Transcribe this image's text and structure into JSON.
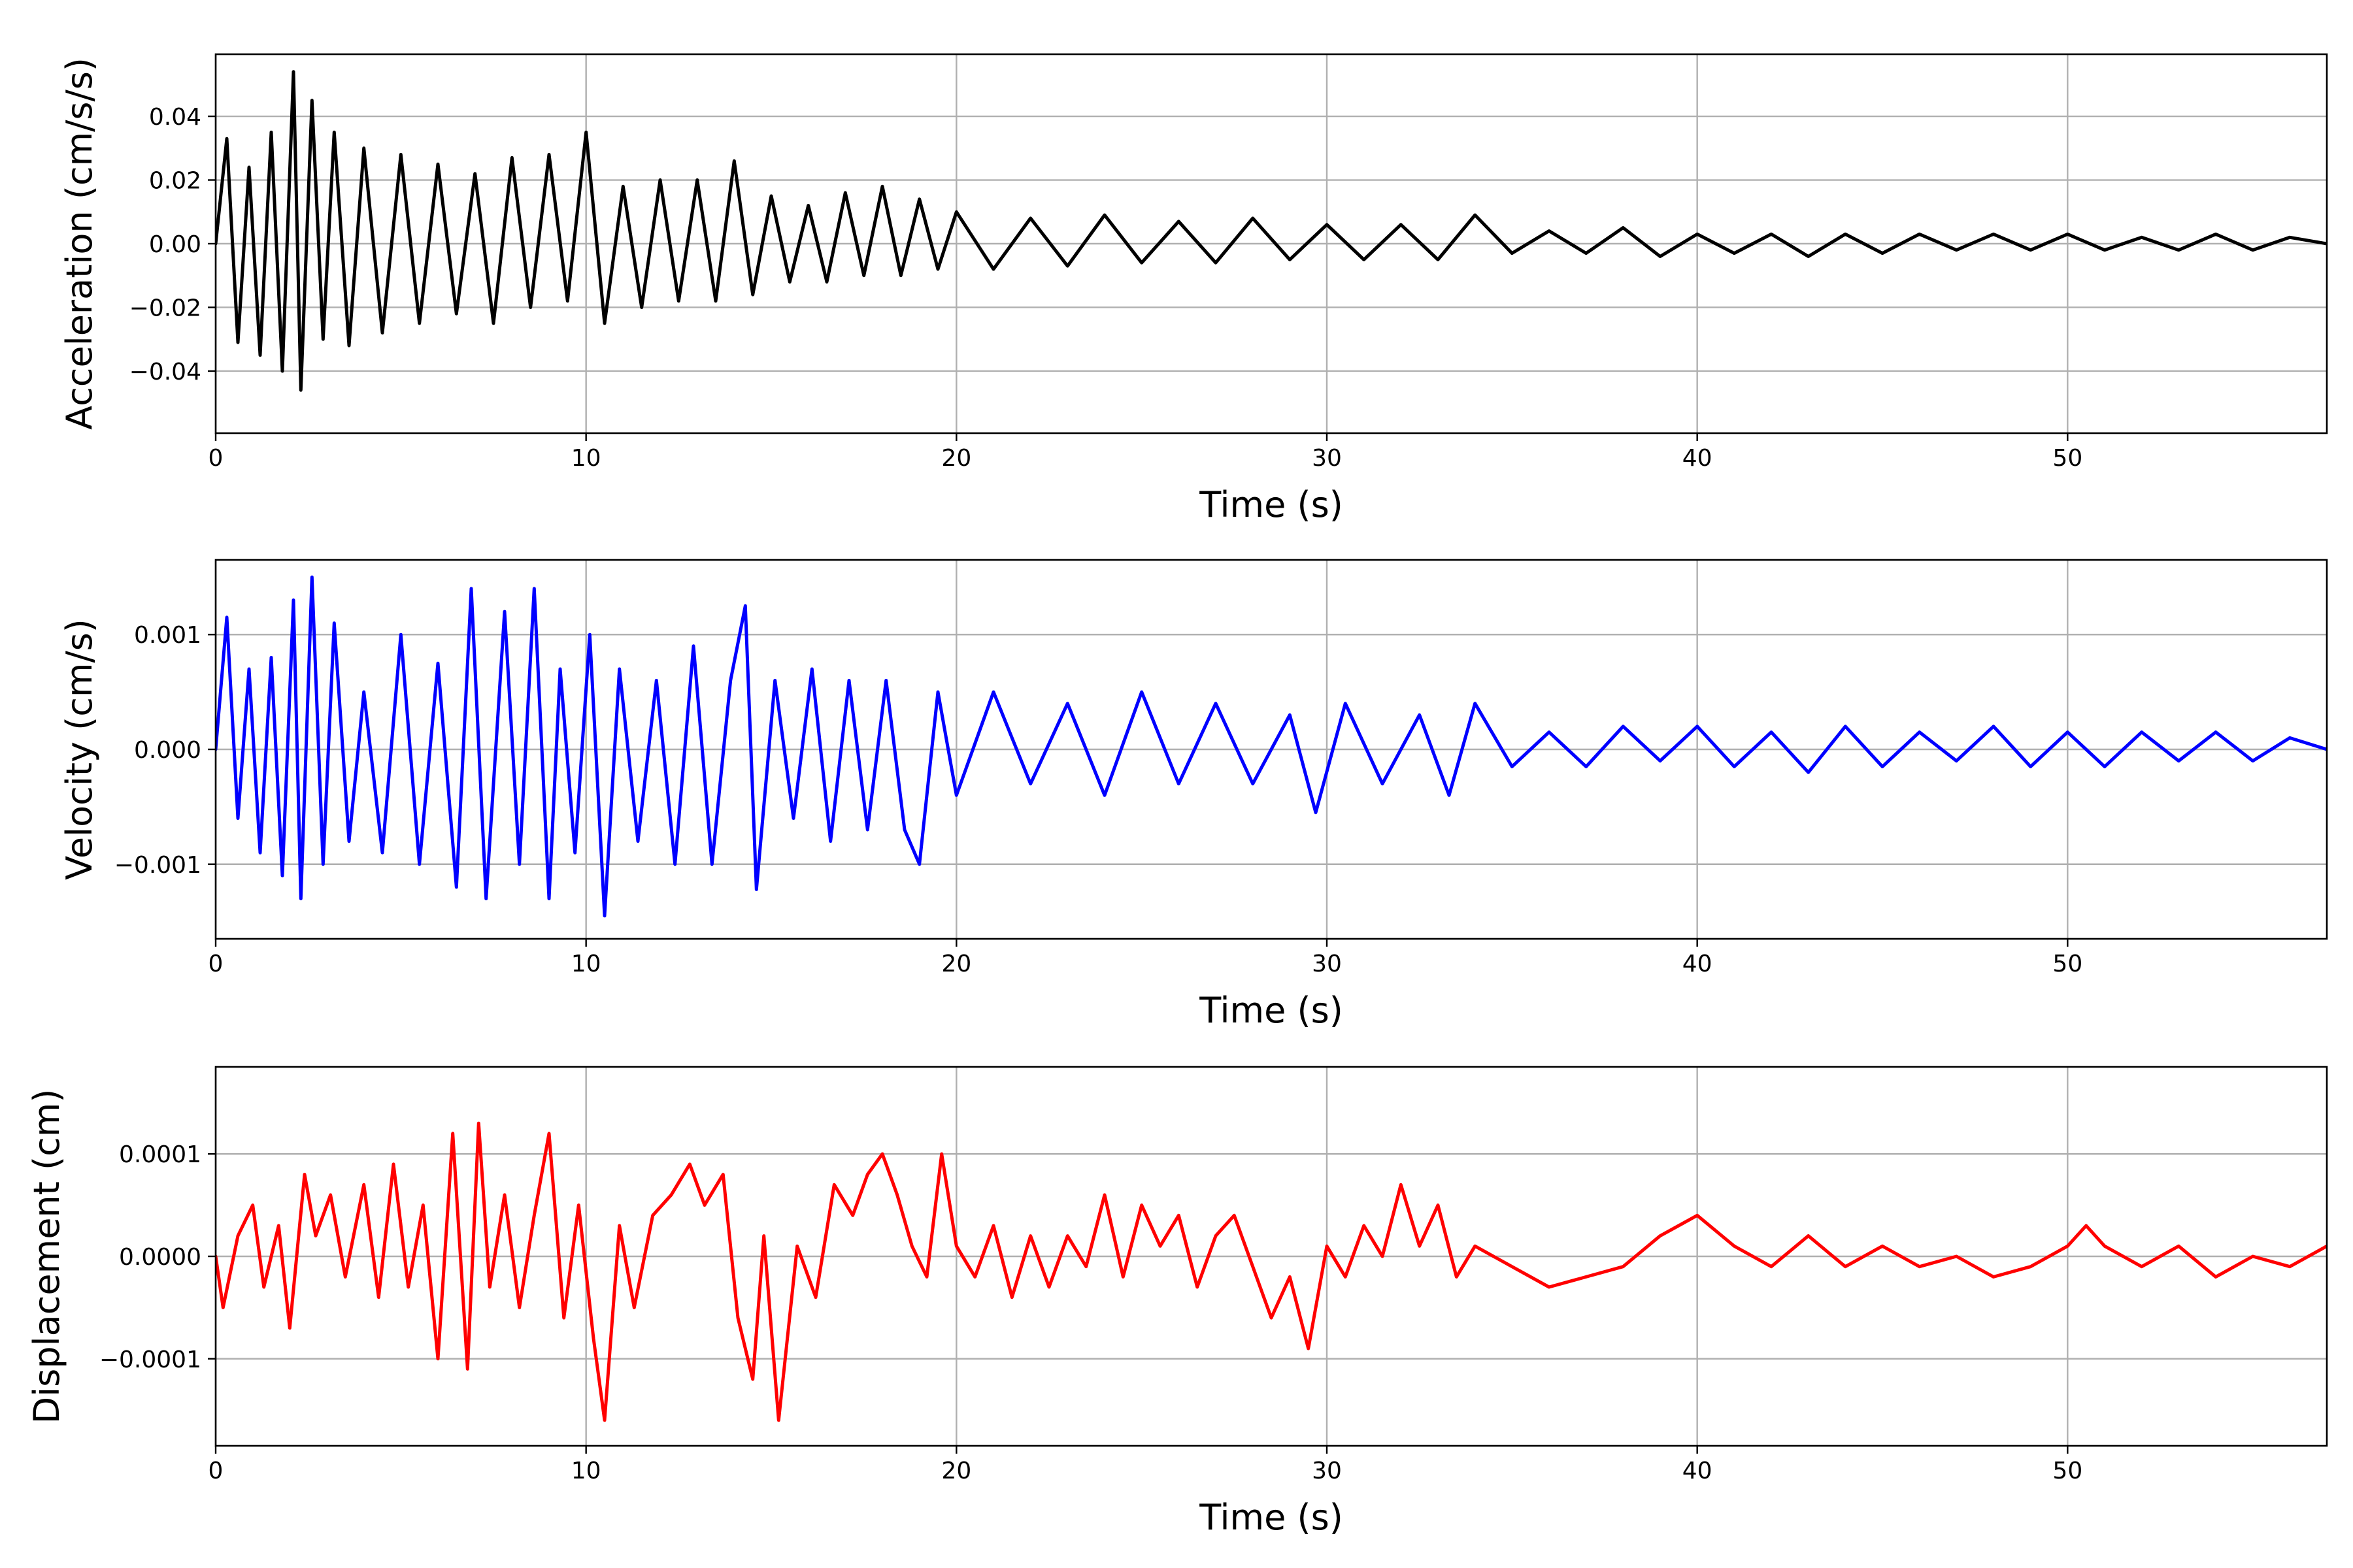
{
  "chart_data": [
    {
      "type": "line",
      "ylabel": "Acceleration (cm/s/s)",
      "xlabel": "Time (s)",
      "xlim": [
        0,
        57
      ],
      "ylim": [
        -0.0595,
        0.0595
      ],
      "grid": true,
      "x_ticks": [
        0,
        10,
        20,
        30,
        40,
        50
      ],
      "x_tick_labels": [
        "0",
        "10",
        "20",
        "30",
        "40",
        "50"
      ],
      "y_ticks": [
        -0.04,
        -0.02,
        0.0,
        0.02,
        0.04
      ],
      "y_tick_labels": [
        "−0.04",
        "−0.02",
        "0.00",
        "0.02",
        "0.04"
      ],
      "series": [
        {
          "color": "#000000",
          "x": [
            0,
            0.3,
            0.6,
            0.9,
            1.2,
            1.5,
            1.8,
            2.1,
            2.3,
            2.6,
            2.9,
            3.2,
            3.6,
            4.0,
            4.5,
            5.0,
            5.5,
            6.0,
            6.5,
            7.0,
            7.5,
            8.0,
            8.5,
            9.0,
            9.5,
            10.0,
            10.5,
            11.0,
            11.5,
            12.0,
            12.5,
            13.0,
            13.5,
            14.0,
            14.5,
            15.0,
            15.5,
            16.0,
            16.5,
            17.0,
            17.5,
            18.0,
            18.5,
            19.0,
            19.5,
            20.0,
            21.0,
            22.0,
            23.0,
            24.0,
            25.0,
            26.0,
            27.0,
            28.0,
            29.0,
            30.0,
            31.0,
            32.0,
            33.0,
            34.0,
            35.0,
            36.0,
            37.0,
            38.0,
            39.0,
            40.0,
            41.0,
            42.0,
            43.0,
            44.0,
            45.0,
            46.0,
            47.0,
            48.0,
            49.0,
            50.0,
            51.0,
            52.0,
            53.0,
            54.0,
            55.0,
            56.0,
            57.0
          ],
          "y": [
            0.0,
            0.033,
            -0.031,
            0.024,
            -0.035,
            0.035,
            -0.04,
            0.054,
            -0.046,
            0.045,
            -0.03,
            0.035,
            -0.032,
            0.03,
            -0.028,
            0.028,
            -0.025,
            0.025,
            -0.022,
            0.022,
            -0.025,
            0.027,
            -0.02,
            0.028,
            -0.018,
            0.035,
            -0.025,
            0.018,
            -0.02,
            0.02,
            -0.018,
            0.02,
            -0.018,
            0.026,
            -0.016,
            0.015,
            -0.012,
            0.012,
            -0.012,
            0.016,
            -0.01,
            0.018,
            -0.01,
            0.014,
            -0.008,
            0.01,
            -0.008,
            0.008,
            -0.007,
            0.009,
            -0.006,
            0.007,
            -0.006,
            0.008,
            -0.005,
            0.006,
            -0.005,
            0.006,
            -0.005,
            0.009,
            -0.003,
            0.004,
            -0.003,
            0.005,
            -0.004,
            0.003,
            -0.003,
            0.003,
            -0.004,
            0.003,
            -0.003,
            0.003,
            -0.002,
            0.003,
            -0.002,
            0.003,
            -0.002,
            0.002,
            -0.002,
            0.003,
            -0.002,
            0.002,
            0.0
          ]
        }
      ]
    },
    {
      "type": "line",
      "ylabel": "Velocity (cm/s)",
      "xlabel": "Time (s)",
      "xlim": [
        0,
        57
      ],
      "ylim": [
        -0.00165,
        0.00165
      ],
      "grid": true,
      "x_ticks": [
        0,
        10,
        20,
        30,
        40,
        50
      ],
      "x_tick_labels": [
        "0",
        "10",
        "20",
        "30",
        "40",
        "50"
      ],
      "y_ticks": [
        -0.001,
        0.0,
        0.001
      ],
      "y_tick_labels": [
        "−0.001",
        "0.000",
        "0.001"
      ],
      "series": [
        {
          "color": "#0000ff",
          "x": [
            0,
            0.3,
            0.6,
            0.9,
            1.2,
            1.5,
            1.8,
            2.1,
            2.3,
            2.6,
            2.9,
            3.2,
            3.6,
            4.0,
            4.5,
            5.0,
            5.5,
            6.0,
            6.5,
            6.9,
            7.3,
            7.8,
            8.2,
            8.6,
            9.0,
            9.3,
            9.7,
            10.1,
            10.5,
            10.9,
            11.4,
            11.9,
            12.4,
            12.9,
            13.4,
            13.9,
            14.3,
            14.6,
            15.1,
            15.6,
            16.1,
            16.6,
            17.1,
            17.6,
            18.1,
            18.6,
            19.0,
            19.5,
            20.0,
            21.0,
            22.0,
            23.0,
            24.0,
            25.0,
            26.0,
            27.0,
            28.0,
            29.0,
            29.7,
            30.5,
            31.5,
            32.5,
            33.3,
            34.0,
            35.0,
            36.0,
            37.0,
            38.0,
            39.0,
            40.0,
            41.0,
            42.0,
            43.0,
            44.0,
            45.0,
            46.0,
            47.0,
            48.0,
            49.0,
            50.0,
            51.0,
            52.0,
            53.0,
            54.0,
            55.0,
            56.0,
            57.0
          ],
          "y": [
            0.0,
            0.00115,
            -0.0006,
            0.0007,
            -0.0009,
            0.0008,
            -0.0011,
            0.0013,
            -0.0013,
            0.0015,
            -0.001,
            0.0011,
            -0.0008,
            0.0005,
            -0.0009,
            0.001,
            -0.001,
            0.00075,
            -0.0012,
            0.0014,
            -0.0013,
            0.0012,
            -0.001,
            0.0014,
            -0.0013,
            0.0007,
            -0.0009,
            0.001,
            -0.00145,
            0.0007,
            -0.0008,
            0.0006,
            -0.001,
            0.0009,
            -0.001,
            0.0006,
            0.00125,
            -0.00122,
            0.0006,
            -0.0006,
            0.0007,
            -0.0008,
            0.0006,
            -0.0007,
            0.0006,
            -0.0007,
            -0.001,
            0.0005,
            -0.0004,
            0.0005,
            -0.0003,
            0.0004,
            -0.0004,
            0.0005,
            -0.0003,
            0.0004,
            -0.0003,
            0.0003,
            -0.00055,
            0.0004,
            -0.0003,
            0.0003,
            -0.0004,
            0.0004,
            -0.00015,
            0.00015,
            -0.00015,
            0.0002,
            -0.0001,
            0.0002,
            -0.00015,
            0.00015,
            -0.0002,
            0.0002,
            -0.00015,
            0.00015,
            -0.0001,
            0.0002,
            -0.00015,
            0.00015,
            -0.00015,
            0.00015,
            -0.0001,
            0.00015,
            -0.0001,
            0.0001,
            0.0
          ]
        }
      ]
    },
    {
      "type": "line",
      "ylabel": "Displacement (cm)",
      "xlabel": "Time (s)",
      "xlim": [
        0,
        57
      ],
      "ylim": [
        -0.000185,
        0.000185
      ],
      "grid": true,
      "x_ticks": [
        0,
        10,
        20,
        30,
        40,
        50
      ],
      "x_tick_labels": [
        "0",
        "10",
        "20",
        "30",
        "40",
        "50"
      ],
      "y_ticks": [
        -0.0001,
        0.0,
        0.0001
      ],
      "y_tick_labels": [
        "−0.0001",
        "0.0000",
        "0.0001"
      ],
      "series": [
        {
          "color": "#ff0000",
          "x": [
            0,
            0.2,
            0.6,
            1.0,
            1.3,
            1.7,
            2.0,
            2.4,
            2.7,
            3.1,
            3.5,
            4.0,
            4.4,
            4.8,
            5.2,
            5.6,
            6.0,
            6.4,
            6.8,
            7.1,
            7.4,
            7.8,
            8.2,
            8.6,
            9.0,
            9.4,
            9.8,
            10.2,
            10.5,
            10.9,
            11.3,
            11.8,
            12.3,
            12.8,
            13.2,
            13.7,
            14.1,
            14.5,
            14.8,
            15.2,
            15.7,
            16.2,
            16.7,
            17.2,
            17.6,
            18.0,
            18.4,
            18.8,
            19.2,
            19.6,
            20.0,
            20.5,
            21.0,
            21.5,
            22.0,
            22.5,
            23.0,
            23.5,
            24.0,
            24.5,
            25.0,
            25.5,
            26.0,
            26.5,
            27.0,
            27.5,
            28.0,
            28.5,
            29.0,
            29.5,
            30.0,
            30.5,
            31.0,
            31.5,
            32.0,
            32.5,
            33.0,
            33.5,
            34.0,
            35.0,
            36.0,
            37.0,
            38.0,
            39.0,
            39.5,
            40.0,
            41.0,
            42.0,
            43.0,
            44.0,
            45.0,
            46.0,
            47.0,
            48.0,
            49.0,
            50.0,
            50.5,
            51.0,
            52.0,
            53.0,
            54.0,
            55.0,
            56.0,
            57.0
          ],
          "y": [
            0.0,
            -5e-05,
            2e-05,
            5e-05,
            -3e-05,
            3e-05,
            -7e-05,
            8e-05,
            2e-05,
            6e-05,
            -2e-05,
            7e-05,
            -4e-05,
            9e-05,
            -3e-05,
            5e-05,
            -0.0001,
            0.00012,
            -0.00011,
            0.00013,
            -3e-05,
            6e-05,
            -5e-05,
            4e-05,
            0.00012,
            -6e-05,
            5e-05,
            -8e-05,
            -0.00016,
            3e-05,
            -5e-05,
            4e-05,
            6e-05,
            9e-05,
            5e-05,
            8e-05,
            -6e-05,
            -0.00012,
            2e-05,
            -0.00016,
            1e-05,
            -4e-05,
            7e-05,
            4e-05,
            8e-05,
            0.0001,
            6e-05,
            1e-05,
            -2e-05,
            0.0001,
            1e-05,
            -2e-05,
            3e-05,
            -4e-05,
            2e-05,
            -3e-05,
            2e-05,
            -1e-05,
            6e-05,
            -2e-05,
            5e-05,
            1e-05,
            4e-05,
            -3e-05,
            2e-05,
            4e-05,
            -1e-05,
            -6e-05,
            -2e-05,
            -9e-05,
            1e-05,
            -2e-05,
            3e-05,
            0.0,
            7e-05,
            1e-05,
            5e-05,
            -2e-05,
            1e-05,
            -1e-05,
            -3e-05,
            -2e-05,
            -1e-05,
            2e-05,
            3e-05,
            4e-05,
            1e-05,
            -1e-05,
            2e-05,
            -1e-05,
            1e-05,
            -1e-05,
            0.0,
            -2e-05,
            -1e-05,
            1e-05,
            3e-05,
            1e-05,
            -1e-05,
            1e-05,
            -2e-05,
            0.0,
            -1e-05,
            1e-05
          ]
        }
      ]
    }
  ]
}
